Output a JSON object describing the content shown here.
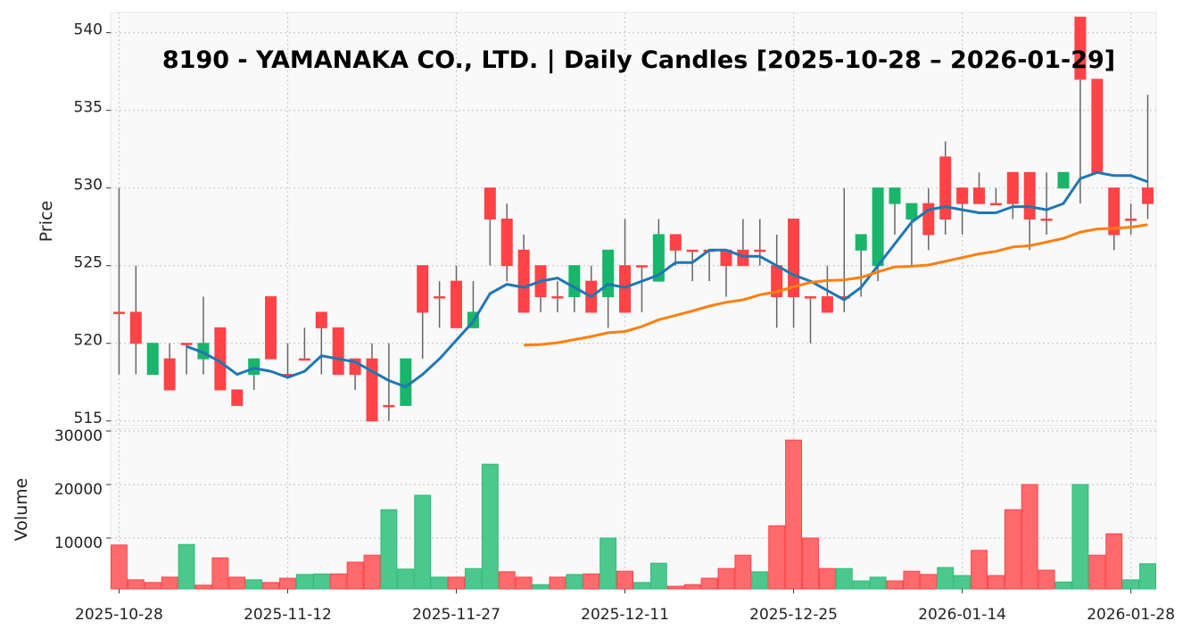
{
  "chart_data": {
    "type": "candlestick",
    "title": "8190 - YAMANAKA CO., LTD. | Daily Candles [2025-10-28 – 2026-01-29]",
    "price_panel": {
      "ylabel": "Price",
      "ylim": [
        514.7,
        541.3
      ],
      "yticks": [
        515,
        520,
        525,
        530,
        535,
        540
      ],
      "grid": true
    },
    "volume_panel": {
      "ylabel": "Volume",
      "ylim": [
        500,
        30500
      ],
      "yticks": [
        10000,
        20000,
        30000
      ],
      "grid": true
    },
    "xticks": [
      {
        "index": 0,
        "label": "2025-10-28"
      },
      {
        "index": 10,
        "label": "2025-11-12"
      },
      {
        "index": 20,
        "label": "2025-11-27"
      },
      {
        "index": 30,
        "label": "2025-12-11"
      },
      {
        "index": 40,
        "label": "2025-12-25"
      },
      {
        "index": 50,
        "label": "2026-01-14"
      },
      {
        "index": 60,
        "label": "2026-01-28"
      }
    ],
    "moving_averages": [
      {
        "name": "MA5",
        "window": 5,
        "color": "#1f77b4"
      },
      {
        "name": "MA25",
        "window": 25,
        "color": "#ff7f0e"
      }
    ],
    "colors": {
      "up": "#18b56a",
      "down": "#ff4347",
      "vol_up": "#4cc78e",
      "vol_down": "#ff6b6d",
      "wick": "#666666"
    },
    "candles": [
      {
        "date": "2025-10-28",
        "o": 522,
        "h": 530,
        "l": 518,
        "c": 522,
        "v": 8700,
        "vd": "down"
      },
      {
        "date": "2025-10-29",
        "o": 522,
        "h": 525,
        "l": 518,
        "c": 520,
        "v": 2200,
        "vd": "down"
      },
      {
        "date": "2025-10-30",
        "o": 518,
        "h": 520,
        "l": 518,
        "c": 520,
        "v": 1700,
        "vd": "down"
      },
      {
        "date": "2025-10-31",
        "o": 519,
        "h": 520,
        "l": 517,
        "c": 517,
        "v": 2700,
        "vd": "down"
      },
      {
        "date": "2025-11-04",
        "o": 520,
        "h": 520,
        "l": 518,
        "c": 520,
        "v": 8800,
        "vd": "up"
      },
      {
        "date": "2025-11-05",
        "o": 519,
        "h": 523,
        "l": 518,
        "c": 520,
        "v": 1200,
        "vd": "down"
      },
      {
        "date": "2025-11-06",
        "o": 521,
        "h": 521,
        "l": 517,
        "c": 517,
        "v": 6300,
        "vd": "down"
      },
      {
        "date": "2025-11-07",
        "o": 517,
        "h": 517,
        "l": 516,
        "c": 516,
        "v": 2700,
        "vd": "down"
      },
      {
        "date": "2025-11-10",
        "o": 518,
        "h": 519,
        "l": 517,
        "c": 519,
        "v": 2200,
        "vd": "up"
      },
      {
        "date": "2025-11-11",
        "o": 523,
        "h": 523,
        "l": 519,
        "c": 519,
        "v": 1700,
        "vd": "down"
      },
      {
        "date": "2025-11-12",
        "o": 518,
        "h": 520,
        "l": 518,
        "c": 518,
        "v": 2500,
        "vd": "down"
      },
      {
        "date": "2025-11-13",
        "o": 519,
        "h": 521,
        "l": 519,
        "c": 519,
        "v": 3200,
        "vd": "up"
      },
      {
        "date": "2025-11-14",
        "o": 522,
        "h": 522,
        "l": 518,
        "c": 521,
        "v": 3300,
        "vd": "up"
      },
      {
        "date": "2025-11-17",
        "o": 521,
        "h": 521,
        "l": 518,
        "c": 518,
        "v": 3300,
        "vd": "down"
      },
      {
        "date": "2025-11-18",
        "o": 519,
        "h": 519,
        "l": 517,
        "c": 518,
        "v": 5500,
        "vd": "down"
      },
      {
        "date": "2025-11-19",
        "o": 519,
        "h": 520,
        "l": 515,
        "c": 515,
        "v": 6800,
        "vd": "down"
      },
      {
        "date": "2025-11-20",
        "o": 516,
        "h": 520,
        "l": 515,
        "c": 516,
        "v": 15300,
        "vd": "up"
      },
      {
        "date": "2025-11-21",
        "o": 516,
        "h": 519,
        "l": 516,
        "c": 519,
        "v": 4200,
        "vd": "up"
      },
      {
        "date": "2025-11-25",
        "o": 525,
        "h": 525,
        "l": 519,
        "c": 522,
        "v": 18000,
        "vd": "up"
      },
      {
        "date": "2025-11-26",
        "o": 523,
        "h": 524,
        "l": 521,
        "c": 523,
        "v": 2700,
        "vd": "up"
      },
      {
        "date": "2025-11-27",
        "o": 524,
        "h": 525,
        "l": 521,
        "c": 521,
        "v": 2700,
        "vd": "down"
      },
      {
        "date": "2025-11-28",
        "o": 521,
        "h": 524,
        "l": 521,
        "c": 522,
        "v": 4300,
        "vd": "up"
      },
      {
        "date": "2025-12-01",
        "o": 530,
        "h": 530,
        "l": 525,
        "c": 528,
        "v": 23800,
        "vd": "up"
      },
      {
        "date": "2025-12-02",
        "o": 528,
        "h": 529,
        "l": 524,
        "c": 525,
        "v": 3700,
        "vd": "down"
      },
      {
        "date": "2025-12-03",
        "o": 526,
        "h": 527,
        "l": 522,
        "c": 522,
        "v": 2700,
        "vd": "down"
      },
      {
        "date": "2025-12-04",
        "o": 525,
        "h": 525,
        "l": 522,
        "c": 523,
        "v": 1300,
        "vd": "up"
      },
      {
        "date": "2025-12-05",
        "o": 523,
        "h": 524,
        "l": 522,
        "c": 523,
        "v": 2700,
        "vd": "down"
      },
      {
        "date": "2025-12-08",
        "o": 523,
        "h": 525,
        "l": 522,
        "c": 525,
        "v": 3200,
        "vd": "up"
      },
      {
        "date": "2025-12-09",
        "o": 524,
        "h": 525,
        "l": 522,
        "c": 522,
        "v": 3300,
        "vd": "down"
      },
      {
        "date": "2025-12-10",
        "o": 523,
        "h": 526,
        "l": 521,
        "c": 526,
        "v": 10000,
        "vd": "up"
      },
      {
        "date": "2025-12-11",
        "o": 525,
        "h": 528,
        "l": 522,
        "c": 522,
        "v": 3800,
        "vd": "down"
      },
      {
        "date": "2025-12-12",
        "o": 525,
        "h": 525,
        "l": 522,
        "c": 525,
        "v": 1700,
        "vd": "up"
      },
      {
        "date": "2025-12-15",
        "o": 524,
        "h": 528,
        "l": 524,
        "c": 527,
        "v": 5300,
        "vd": "up"
      },
      {
        "date": "2025-12-16",
        "o": 527,
        "h": 527,
        "l": 525,
        "c": 526,
        "v": 1000,
        "vd": "down"
      },
      {
        "date": "2025-12-17",
        "o": 526,
        "h": 526,
        "l": 524,
        "c": 526,
        "v": 1300,
        "vd": "down"
      },
      {
        "date": "2025-12-18",
        "o": 526,
        "h": 526,
        "l": 524,
        "c": 526,
        "v": 2500,
        "vd": "down"
      },
      {
        "date": "2025-12-19",
        "o": 526,
        "h": 526,
        "l": 523,
        "c": 525,
        "v": 4300,
        "vd": "down"
      },
      {
        "date": "2025-12-22",
        "o": 526,
        "h": 528,
        "l": 525,
        "c": 525,
        "v": 6800,
        "vd": "down"
      },
      {
        "date": "2025-12-23",
        "o": 526,
        "h": 528,
        "l": 525,
        "c": 526,
        "v": 3700,
        "vd": "up"
      },
      {
        "date": "2025-12-24",
        "o": 525,
        "h": 527,
        "l": 521,
        "c": 523,
        "v": 12300,
        "vd": "down"
      },
      {
        "date": "2025-12-25",
        "o": 528,
        "h": 528,
        "l": 521,
        "c": 523,
        "v": 28300,
        "vd": "down"
      },
      {
        "date": "2025-12-26",
        "o": 523,
        "h": 523,
        "l": 520,
        "c": 523,
        "v": 10000,
        "vd": "down"
      },
      {
        "date": "2025-12-29",
        "o": 523,
        "h": 525,
        "l": 522,
        "c": 522,
        "v": 4300,
        "vd": "down"
      },
      {
        "date": "2025-12-30",
        "o": 523,
        "h": 530,
        "l": 522,
        "c": 523,
        "v": 4300,
        "vd": "up"
      },
      {
        "date": "2026-01-05",
        "o": 526,
        "h": 527,
        "l": 523,
        "c": 527,
        "v": 2000,
        "vd": "up"
      },
      {
        "date": "2026-01-06",
        "o": 525,
        "h": 530,
        "l": 524,
        "c": 530,
        "v": 2700,
        "vd": "up"
      },
      {
        "date": "2026-01-07",
        "o": 529,
        "h": 530,
        "l": 527,
        "c": 530,
        "v": 2000,
        "vd": "down"
      },
      {
        "date": "2026-01-08",
        "o": 528,
        "h": 529,
        "l": 525,
        "c": 529,
        "v": 3800,
        "vd": "down"
      },
      {
        "date": "2026-01-09",
        "o": 529,
        "h": 530,
        "l": 526,
        "c": 527,
        "v": 3200,
        "vd": "down"
      },
      {
        "date": "2026-01-13",
        "o": 532,
        "h": 533,
        "l": 527,
        "c": 528,
        "v": 4500,
        "vd": "up"
      },
      {
        "date": "2026-01-14",
        "o": 530,
        "h": 530,
        "l": 527,
        "c": 529,
        "v": 3000,
        "vd": "up"
      },
      {
        "date": "2026-01-15",
        "o": 530,
        "h": 531,
        "l": 529,
        "c": 529,
        "v": 7700,
        "vd": "down"
      },
      {
        "date": "2026-01-16",
        "o": 529,
        "h": 530,
        "l": 529,
        "c": 529,
        "v": 3000,
        "vd": "down"
      },
      {
        "date": "2026-01-19",
        "o": 531,
        "h": 531,
        "l": 528,
        "c": 529,
        "v": 15300,
        "vd": "down"
      },
      {
        "date": "2026-01-20",
        "o": 531,
        "h": 531,
        "l": 526,
        "c": 528,
        "v": 20000,
        "vd": "down"
      },
      {
        "date": "2026-01-21",
        "o": 528,
        "h": 531,
        "l": 527,
        "c": 528,
        "v": 4000,
        "vd": "down"
      },
      {
        "date": "2026-01-22",
        "o": 530,
        "h": 531,
        "l": 530,
        "c": 531,
        "v": 1800,
        "vd": "up"
      },
      {
        "date": "2026-01-23",
        "o": 541,
        "h": 541,
        "l": 529,
        "c": 537,
        "v": 20000,
        "vd": "up"
      },
      {
        "date": "2026-01-26",
        "o": 537,
        "h": 537,
        "l": 531,
        "c": 531,
        "v": 6800,
        "vd": "down"
      },
      {
        "date": "2026-01-27",
        "o": 530,
        "h": 530,
        "l": 526,
        "c": 527,
        "v": 10800,
        "vd": "down"
      },
      {
        "date": "2026-01-28",
        "o": 528,
        "h": 529,
        "l": 527,
        "c": 528,
        "v": 2200,
        "vd": "up"
      },
      {
        "date": "2026-01-29",
        "o": 530,
        "h": 536,
        "l": 528,
        "c": 529,
        "v": 5200,
        "vd": "up"
      }
    ]
  }
}
